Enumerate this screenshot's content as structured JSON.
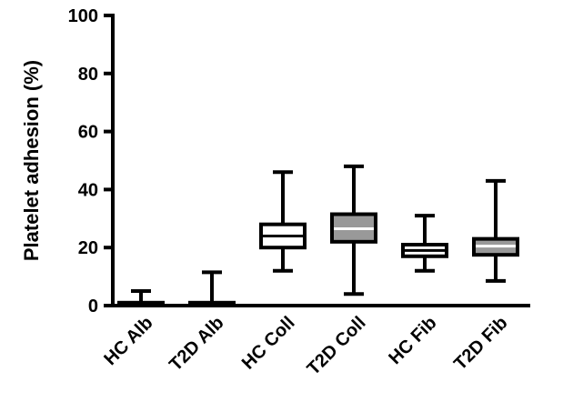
{
  "chart_data": {
    "type": "box",
    "ylabel": "Platelet adhesion (%)",
    "ylim": [
      0,
      100
    ],
    "yticks": [
      0,
      20,
      40,
      60,
      80,
      100
    ],
    "categories": [
      "HC Alb",
      "T2D Alb",
      "HC Coll",
      "T2D Coll",
      "HC Fib",
      "T2D Fib"
    ],
    "series": [
      {
        "category": "HC Alb",
        "min": 0,
        "q1": 0,
        "median": 0.5,
        "q3": 1,
        "max": 5,
        "fill": "#ffffff"
      },
      {
        "category": "T2D Alb",
        "min": 0,
        "q1": 0,
        "median": 0.5,
        "q3": 1,
        "max": 11.5,
        "fill": "#ffffff"
      },
      {
        "category": "HC Coll",
        "min": 12,
        "q1": 20,
        "median": 24,
        "q3": 28,
        "max": 46,
        "fill": "#ffffff"
      },
      {
        "category": "T2D Coll",
        "min": 4,
        "q1": 22,
        "median": 26.5,
        "q3": 31.5,
        "max": 48,
        "fill": "#999999"
      },
      {
        "category": "HC Fib",
        "min": 12,
        "q1": 17,
        "median": 19,
        "q3": 21,
        "max": 31,
        "fill": "#ffffff"
      },
      {
        "category": "T2D Fib",
        "min": 8.5,
        "q1": 17.5,
        "median": 20.5,
        "q3": 23,
        "max": 43,
        "fill": "#999999"
      }
    ]
  }
}
